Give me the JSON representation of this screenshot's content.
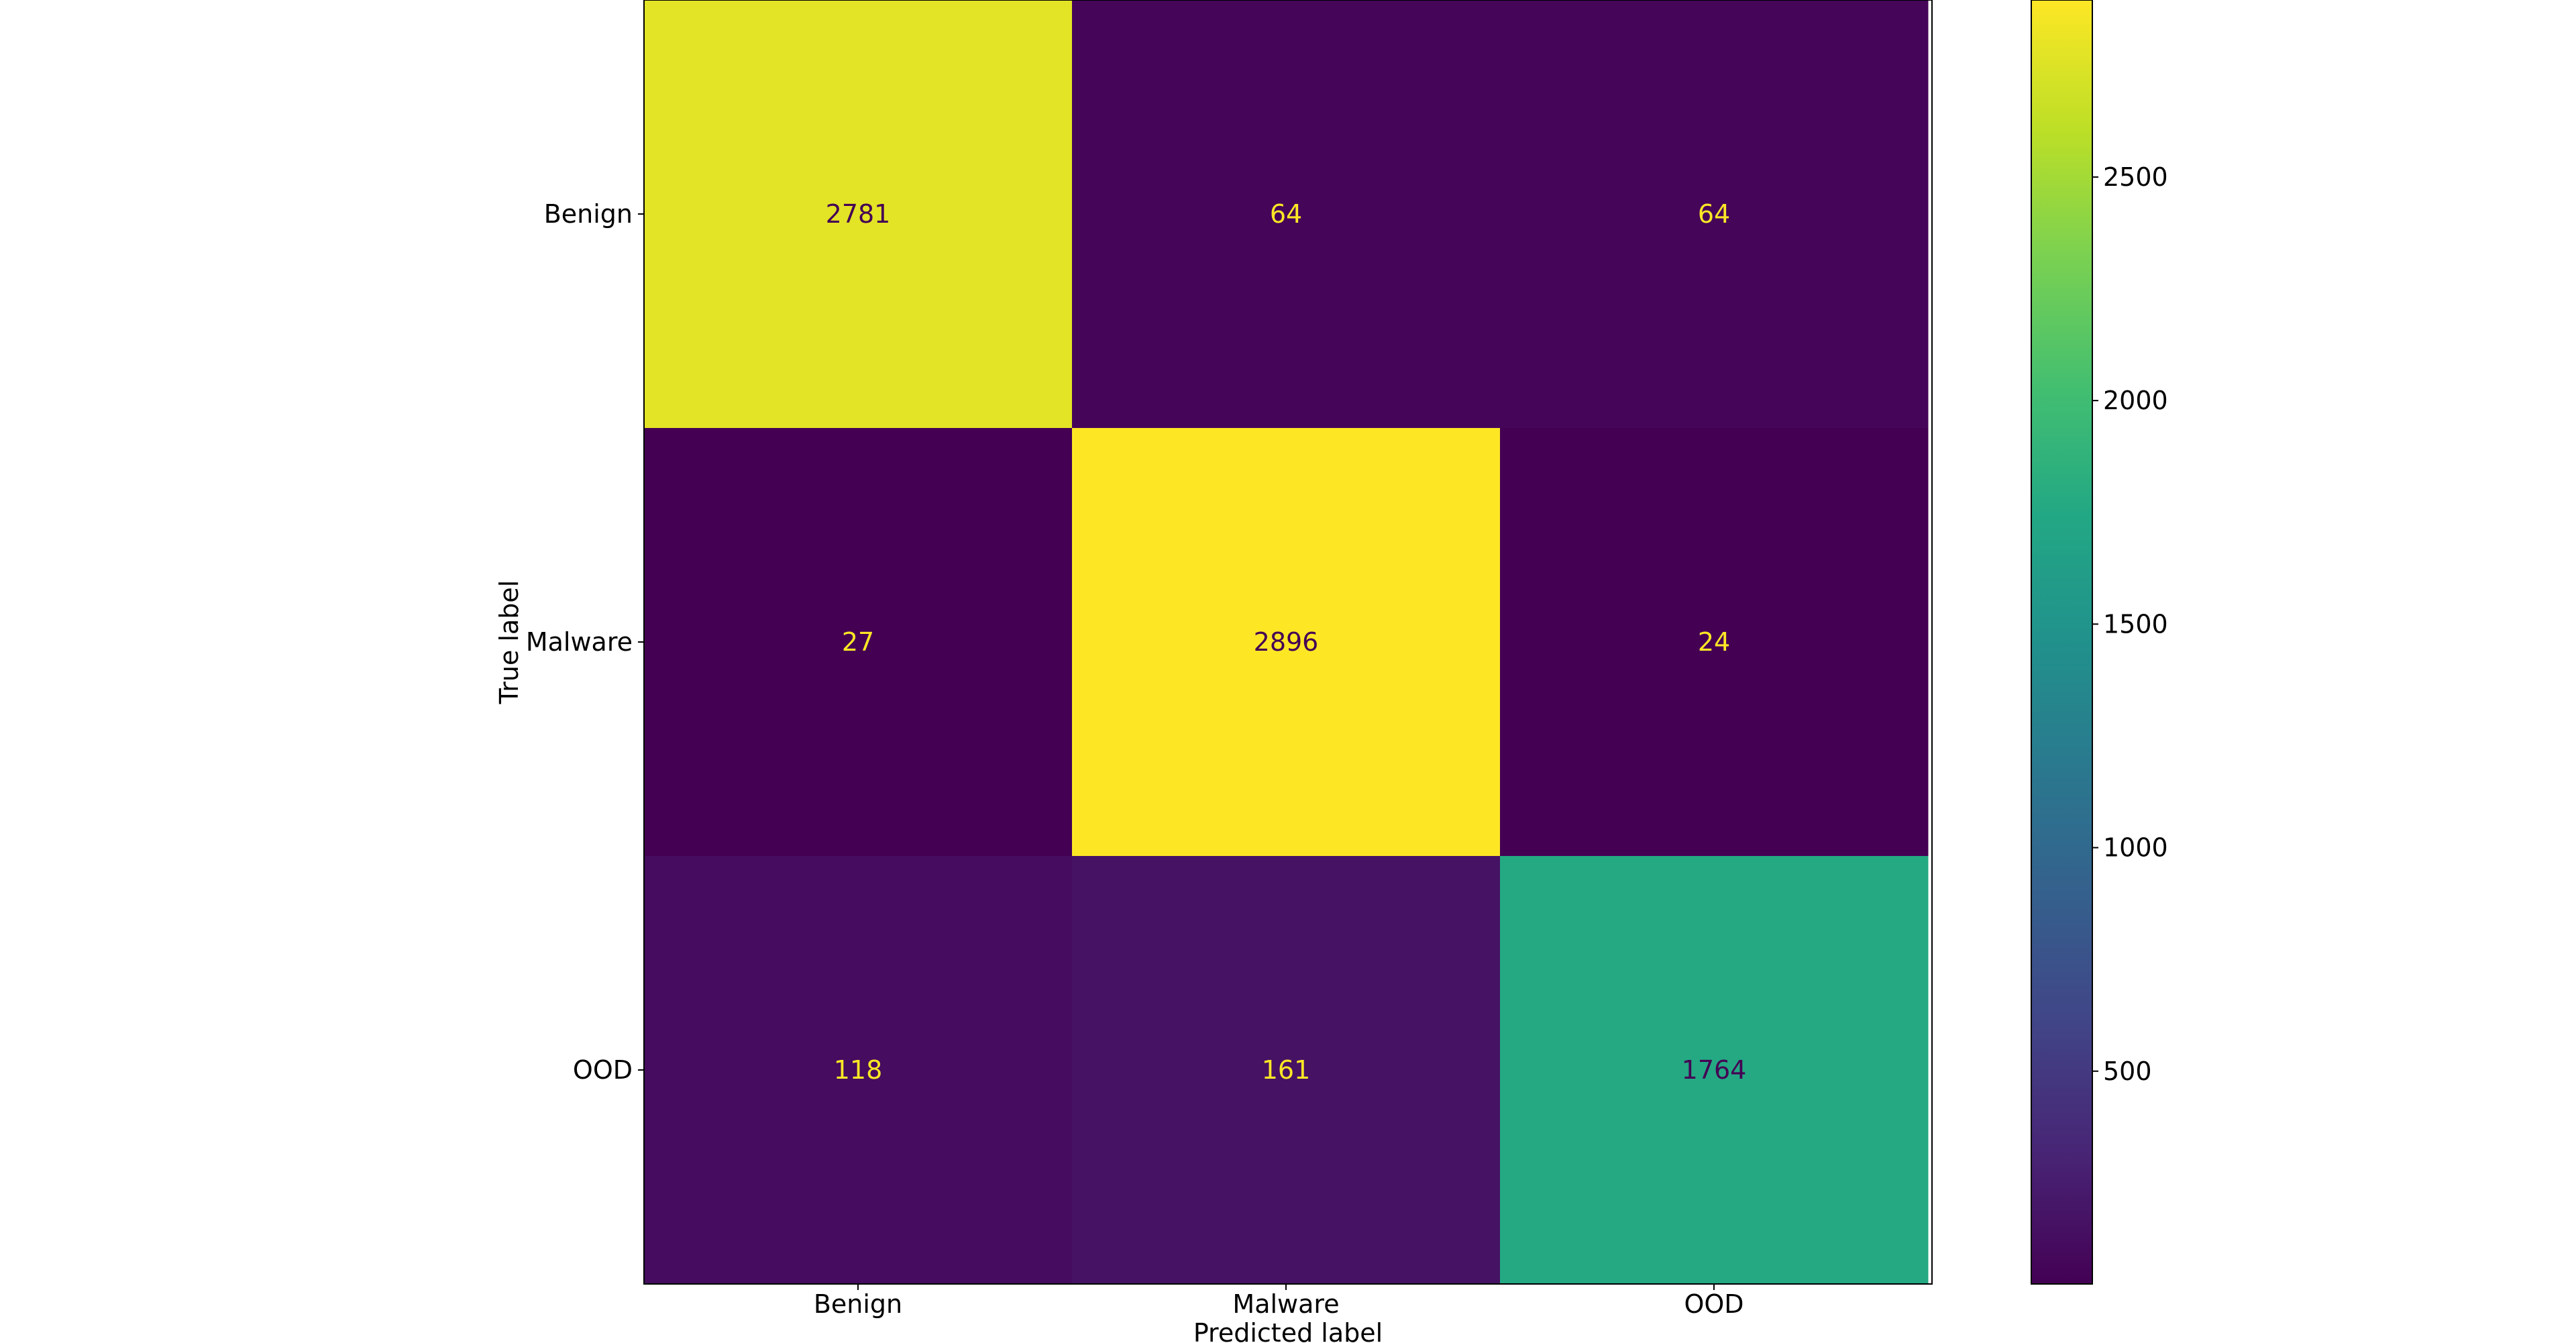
{
  "chart_data": {
    "type": "heatmap",
    "title": "",
    "xlabel": "Predicted label",
    "ylabel": "True label",
    "x_categories": [
      "Benign",
      "Malware",
      "OOD"
    ],
    "y_categories": [
      "Benign",
      "Malware",
      "OOD"
    ],
    "values": [
      [
        2781,
        64,
        64
      ],
      [
        27,
        2896,
        24
      ],
      [
        118,
        161,
        1764
      ]
    ],
    "colormap": "viridis",
    "colorbar": {
      "range": [
        24,
        2896
      ],
      "ticks": [
        500,
        1000,
        1500,
        2000,
        2500
      ]
    },
    "grid": false
  }
}
